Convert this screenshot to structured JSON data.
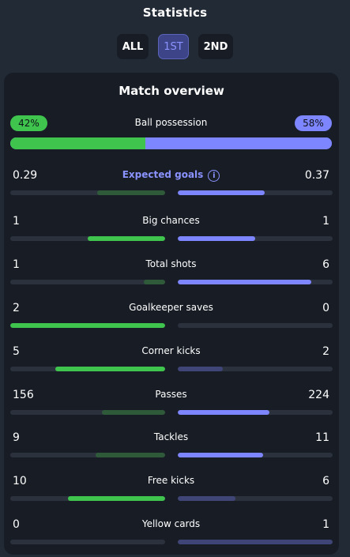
{
  "header": {
    "title": "Statistics"
  },
  "tabs": [
    {
      "label": "ALL",
      "active": false
    },
    {
      "label": "1ST",
      "active": true
    },
    {
      "label": "2ND",
      "active": false
    }
  ],
  "card": {
    "title": "Match overview",
    "possession": {
      "label": "Ball possession",
      "home": "42%",
      "away": "58%",
      "home_fraction": 0.42
    },
    "stats": [
      {
        "label": "Expected goals",
        "home": "0.29",
        "away": "0.37",
        "highlight": true,
        "info_icon": "info-icon"
      },
      {
        "label": "Big chances",
        "home": "1",
        "away": "1"
      },
      {
        "label": "Total shots",
        "home": "1",
        "away": "6"
      },
      {
        "label": "Goalkeeper saves",
        "home": "2",
        "away": "0"
      },
      {
        "label": "Corner kicks",
        "home": "5",
        "away": "2"
      },
      {
        "label": "Passes",
        "home": "156",
        "away": "224"
      },
      {
        "label": "Tackles",
        "home": "9",
        "away": "11"
      },
      {
        "label": "Free kicks",
        "home": "10",
        "away": "6"
      },
      {
        "label": "Yellow cards",
        "home": "0",
        "away": "1"
      }
    ]
  },
  "colors": {
    "home": "#3fc54e",
    "away": "#7d85ff",
    "background": "#222a36",
    "card": "#171c25"
  }
}
